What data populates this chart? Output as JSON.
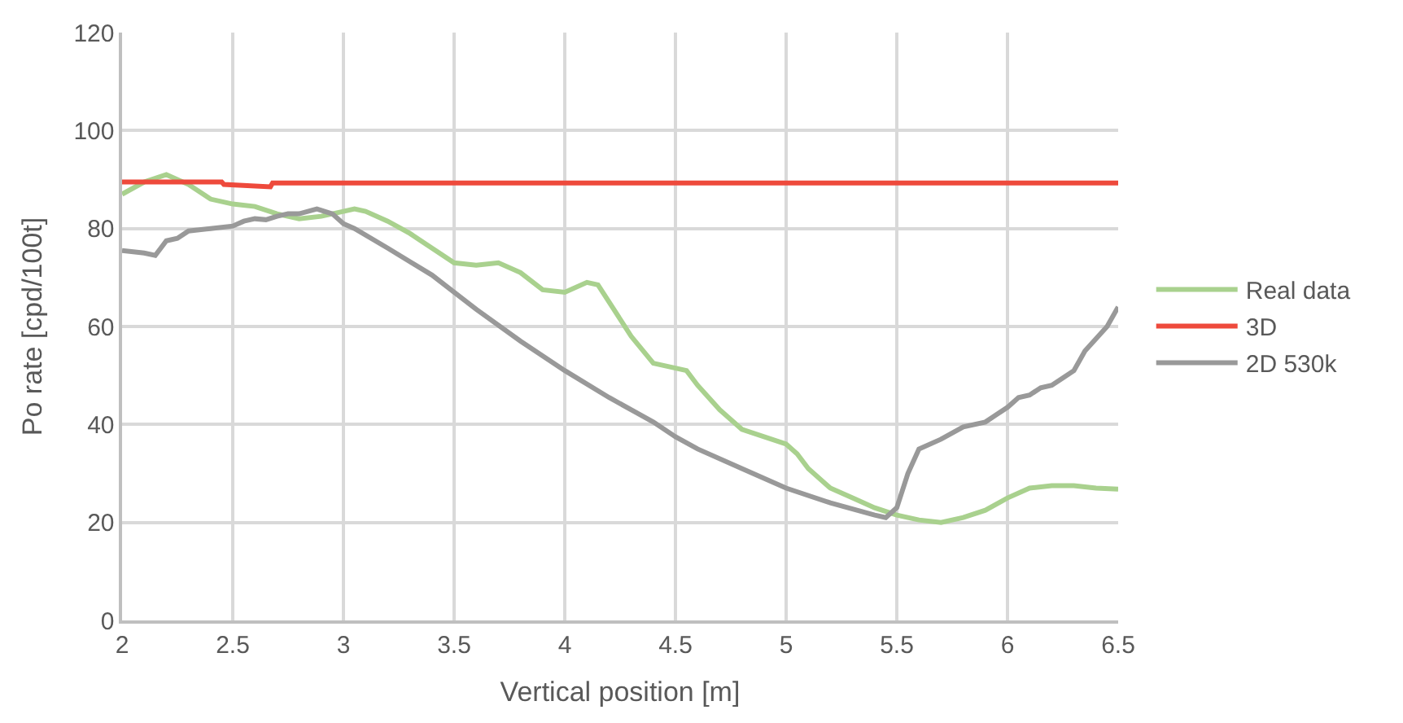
{
  "chart_data": {
    "type": "line",
    "xlabel": "Vertical position [m]",
    "ylabel": "Po rate [cpd/100t]",
    "xlim": [
      2,
      6.5
    ],
    "xticks": [
      2,
      2.5,
      3,
      3.5,
      4,
      4.5,
      5,
      5.5,
      6,
      6.5
    ],
    "ylim": [
      0,
      120
    ],
    "yticks": [
      0,
      20,
      40,
      60,
      80,
      100,
      120
    ],
    "grid": true,
    "legend": "right",
    "marker": "none",
    "line_style": "solid",
    "series": [
      {
        "name": "Real data",
        "color": "#a9d18e",
        "x": [
          2,
          2.1,
          2.2,
          2.3,
          2.4,
          2.5,
          2.6,
          2.7,
          2.8,
          2.9,
          3.0,
          3.05,
          3.1,
          3.2,
          3.3,
          3.4,
          3.5,
          3.6,
          3.7,
          3.8,
          3.9,
          4.0,
          4.1,
          4.15,
          4.2,
          4.3,
          4.4,
          4.5,
          4.55,
          4.6,
          4.7,
          4.8,
          4.9,
          5.0,
          5.05,
          5.1,
          5.2,
          5.3,
          5.4,
          5.5,
          5.6,
          5.7,
          5.8,
          5.9,
          6.0,
          6.1,
          6.2,
          6.3,
          6.4,
          6.5
        ],
        "values": [
          87,
          89.5,
          91,
          89,
          86,
          85,
          84.5,
          83,
          82,
          82.5,
          83.5,
          84,
          83.5,
          81.5,
          79,
          76,
          73,
          72.5,
          73,
          71,
          67.5,
          67,
          69,
          68.5,
          65,
          58,
          52.5,
          51.5,
          51,
          48,
          43,
          39,
          37.5,
          36,
          34,
          31,
          27,
          25,
          23,
          21.5,
          20.5,
          20,
          21,
          22.5,
          25,
          27,
          27.5,
          27.5,
          27,
          26.8
        ]
      },
      {
        "name": "3D",
        "color": "#ee4a3c",
        "x": [
          2,
          2.45,
          2.46,
          2.67,
          2.68,
          6.5
        ],
        "values": [
          89.5,
          89.5,
          89,
          88.5,
          89.3,
          89.3
        ]
      },
      {
        "name": "2D 530k",
        "color": "#999999",
        "x": [
          2,
          2.1,
          2.15,
          2.2,
          2.25,
          2.3,
          2.4,
          2.5,
          2.55,
          2.6,
          2.65,
          2.7,
          2.75,
          2.8,
          2.88,
          2.95,
          3.0,
          3.05,
          3.2,
          3.4,
          3.5,
          3.6,
          3.8,
          4.0,
          4.2,
          4.4,
          4.5,
          4.6,
          4.8,
          5.0,
          5.2,
          5.4,
          5.45,
          5.5,
          5.55,
          5.6,
          5.7,
          5.8,
          5.9,
          5.95,
          6.0,
          6.05,
          6.1,
          6.15,
          6.2,
          6.25,
          6.3,
          6.35,
          6.4,
          6.45,
          6.5
        ],
        "values": [
          75.5,
          75,
          74.5,
          77.5,
          78,
          79.5,
          80,
          80.5,
          81.5,
          82,
          81.8,
          82.5,
          83,
          83,
          84,
          83,
          81,
          80,
          76,
          70.5,
          67,
          63.5,
          57,
          51,
          45.5,
          40.5,
          37.5,
          35,
          31,
          27,
          24,
          21.5,
          21,
          23,
          30,
          35,
          37,
          39.5,
          40.5,
          42,
          43.5,
          45.5,
          46,
          47.5,
          48,
          49.5,
          51,
          55,
          57.5,
          60,
          64
        ]
      }
    ]
  }
}
